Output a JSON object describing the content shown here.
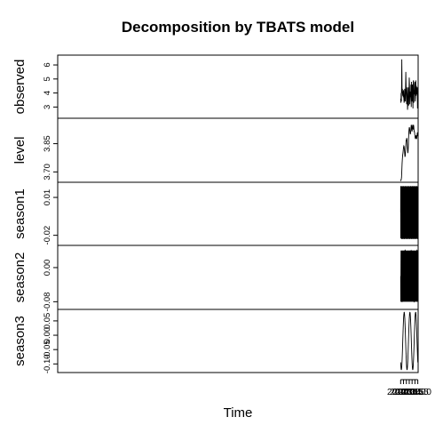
{
  "chart_data": {
    "type": "line",
    "title": "Decomposition by TBATS model",
    "xlabel": "Time",
    "xlim": [
      1951.94,
      2015.06
    ],
    "x_ticks": [
      "2012.0",
      "2012.5",
      "2013.0",
      "2013.5",
      "2014.0",
      "2014.5",
      "2015.0"
    ],
    "x_tick_values": [
      2012.0,
      2012.5,
      2013.0,
      2013.5,
      2014.0,
      2014.5,
      2015.0
    ],
    "grid": false,
    "panels": [
      {
        "name": "observed",
        "ylim": [
          2.2,
          6.7
        ],
        "y_ticks": [
          "3",
          "4",
          "5",
          "6"
        ],
        "y_tick_values": [
          3,
          4,
          5,
          6
        ],
        "x": [
          2012.0,
          2012.05,
          2012.08,
          2012.12,
          2012.16,
          2012.2,
          2012.25,
          2012.3,
          2012.35,
          2012.4,
          2012.45,
          2012.5,
          2012.55,
          2012.6,
          2012.65,
          2012.7,
          2012.75,
          2012.8,
          2012.85,
          2012.9,
          2012.95,
          2013.0,
          2013.05,
          2013.1,
          2013.15,
          2013.2,
          2013.25,
          2013.3,
          2013.35,
          2013.4,
          2013.45,
          2013.5,
          2013.55,
          2013.6,
          2013.65,
          2013.7,
          2013.75,
          2013.8,
          2013.85,
          2013.9,
          2013.95,
          2014.0,
          2014.05,
          2014.1,
          2014.15,
          2014.2,
          2014.25,
          2014.3,
          2014.35,
          2014.4,
          2014.45,
          2014.5,
          2014.55,
          2014.6,
          2014.65,
          2014.7,
          2014.75,
          2014.8,
          2014.85,
          2014.9,
          2014.95,
          2015.0
        ],
        "values": [
          3.6,
          3.3,
          4.0,
          3.4,
          4.5,
          6.4,
          4.0,
          4.3,
          3.8,
          4.1,
          3.7,
          4.2,
          3.6,
          3.3,
          3.5,
          4.3,
          3.6,
          3.4,
          4.2,
          5.5,
          4.5,
          3.6,
          3.2,
          3.5,
          4.4,
          2.8,
          3.1,
          3.6,
          4.4,
          3.1,
          3.9,
          5.1,
          4.5,
          3.2,
          3.6,
          4.1,
          3.7,
          4.6,
          3.0,
          4.8,
          4.1,
          3.4,
          4.6,
          3.8,
          2.9,
          4.8,
          4.9,
          3.3,
          4.2,
          3.9,
          4.6,
          4.8,
          3.4,
          3.7,
          4.9,
          3.8,
          4.5,
          4.2,
          3.9,
          4.4,
          2.9,
          3.8
        ]
      },
      {
        "name": "level",
        "ylim": [
          3.645,
          3.985
        ],
        "y_ticks": [
          "3.70",
          "3.85"
        ],
        "y_tick_values": [
          3.7,
          3.85
        ],
        "x": [
          2012.0,
          2012.05,
          2012.1,
          2012.15,
          2012.2,
          2012.25,
          2012.3,
          2012.35,
          2012.4,
          2012.45,
          2012.5,
          2012.55,
          2012.6,
          2012.65,
          2012.7,
          2012.75,
          2012.8,
          2012.85,
          2012.9,
          2012.95,
          2013.0,
          2013.05,
          2013.1,
          2013.15,
          2013.2,
          2013.25,
          2013.3,
          2013.35,
          2013.4,
          2013.45,
          2013.5,
          2013.55,
          2013.6,
          2013.65,
          2013.7,
          2013.75,
          2013.8,
          2013.85,
          2013.9,
          2013.95,
          2014.0,
          2014.05,
          2014.1,
          2014.15,
          2014.2,
          2014.25,
          2014.3,
          2014.35,
          2014.4,
          2014.45,
          2014.5,
          2014.55,
          2014.6,
          2014.65,
          2014.7,
          2014.75,
          2014.8,
          2014.85,
          2014.9,
          2014.95,
          2015.0
        ],
        "values": [
          3.66,
          3.655,
          3.66,
          3.67,
          3.705,
          3.745,
          3.77,
          3.79,
          3.8,
          3.815,
          3.83,
          3.838,
          3.835,
          3.82,
          3.8,
          3.78,
          3.785,
          3.81,
          3.84,
          3.87,
          3.865,
          3.88,
          3.875,
          3.85,
          3.82,
          3.8,
          3.81,
          3.84,
          3.89,
          3.92,
          3.935,
          3.935,
          3.92,
          3.905,
          3.9,
          3.91,
          3.93,
          3.95,
          3.945,
          3.92,
          3.915,
          3.935,
          3.95,
          3.935,
          3.925,
          3.95,
          3.94,
          3.915,
          3.915,
          3.905,
          3.89,
          3.88,
          3.875,
          3.885,
          3.895,
          3.885,
          3.875,
          3.885,
          3.905,
          3.91,
          3.89
        ]
      },
      {
        "name": "season1",
        "ylim": [
          -0.028,
          0.022
        ],
        "y_ticks": [
          "-0.02",
          "0.01"
        ],
        "y_tick_values": [
          -0.02,
          0.01
        ],
        "curve": {
          "kind": "sinusoid",
          "period_years": 0.019165,
          "amplitude": 0.021,
          "offset": -0.002,
          "phase": 0.0
        }
      },
      {
        "name": "season2",
        "ylim": [
          -0.098,
          0.052
        ],
        "y_ticks": [
          "-0.08",
          "0.00"
        ],
        "y_tick_values": [
          -0.08,
          0.0
        ],
        "curve": {
          "kind": "sinusoid",
          "period_years": 0.0834,
          "amplitude": 0.06,
          "offset": -0.02,
          "phase": 3.14159
        }
      },
      {
        "name": "season3",
        "ylim": [
          -0.13,
          0.09
        ],
        "y_ticks": [
          "-0.10",
          "-0.05",
          "0.00",
          "0.05"
        ],
        "y_tick_values": [
          -0.1,
          -0.05,
          0.0,
          0.05
        ],
        "curve": {
          "kind": "sinusoid",
          "period_years": 1.0,
          "amplitude": 0.1,
          "offset": -0.02,
          "phase": -2.3
        }
      }
    ]
  }
}
